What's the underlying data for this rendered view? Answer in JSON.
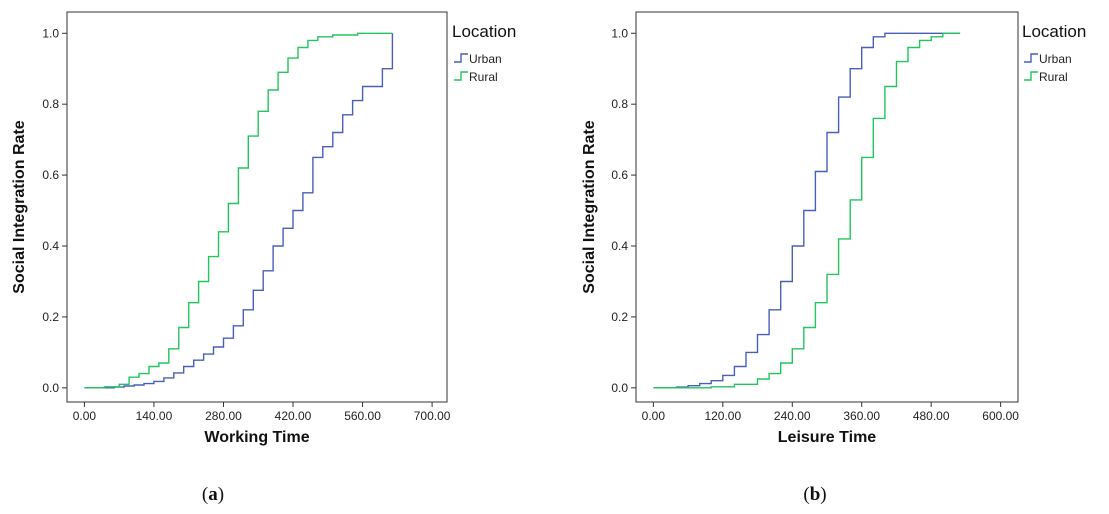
{
  "chart_data": [
    {
      "type": "line",
      "xlabel": "Working Time",
      "ylabel": "Social Integration Rate",
      "xlim": [
        -35,
        730
      ],
      "ylim": [
        -0.04,
        1.06
      ],
      "x_ticks": [
        "0.00",
        "140.00",
        "280.00",
        "420.00",
        "560.00",
        "700.00"
      ],
      "y_ticks": [
        "0.0",
        "0.2",
        "0.4",
        "0.6",
        "0.8",
        "1.0"
      ],
      "legend_title": "Location",
      "legend_position": "right",
      "caption": "(a)",
      "series": [
        {
          "name": "Urban",
          "color": "#4a5fb8",
          "points": [
            [
              0,
              0
            ],
            [
              60,
              0.002
            ],
            [
              80,
              0.005
            ],
            [
              100,
              0.008
            ],
            [
              120,
              0.012
            ],
            [
              140,
              0.018
            ],
            [
              160,
              0.028
            ],
            [
              180,
              0.042
            ],
            [
              200,
              0.06
            ],
            [
              220,
              0.078
            ],
            [
              240,
              0.095
            ],
            [
              260,
              0.115
            ],
            [
              280,
              0.14
            ],
            [
              300,
              0.175
            ],
            [
              320,
              0.22
            ],
            [
              340,
              0.275
            ],
            [
              360,
              0.33
            ],
            [
              380,
              0.4
            ],
            [
              400,
              0.45
            ],
            [
              420,
              0.5
            ],
            [
              440,
              0.55
            ],
            [
              460,
              0.65
            ],
            [
              480,
              0.68
            ],
            [
              500,
              0.72
            ],
            [
              520,
              0.77
            ],
            [
              540,
              0.81
            ],
            [
              560,
              0.85
            ],
            [
              600,
              0.9
            ],
            [
              620,
              0.9
            ],
            [
              620,
              1.0
            ]
          ]
        },
        {
          "name": "Rural",
          "color": "#22c55e",
          "points": [
            [
              0,
              0
            ],
            [
              40,
              0.003
            ],
            [
              70,
              0.01
            ],
            [
              90,
              0.03
            ],
            [
              110,
              0.04
            ],
            [
              130,
              0.06
            ],
            [
              150,
              0.07
            ],
            [
              170,
              0.11
            ],
            [
              190,
              0.17
            ],
            [
              210,
              0.24
            ],
            [
              230,
              0.3
            ],
            [
              250,
              0.37
            ],
            [
              270,
              0.44
            ],
            [
              290,
              0.52
            ],
            [
              310,
              0.62
            ],
            [
              330,
              0.71
            ],
            [
              350,
              0.78
            ],
            [
              370,
              0.84
            ],
            [
              390,
              0.89
            ],
            [
              410,
              0.93
            ],
            [
              430,
              0.96
            ],
            [
              450,
              0.98
            ],
            [
              470,
              0.99
            ],
            [
              500,
              0.995
            ],
            [
              550,
              1.0
            ],
            [
              620,
              1.0
            ]
          ]
        }
      ]
    },
    {
      "type": "line",
      "xlabel": "Leisure Time",
      "ylabel": "Social Integration Rate",
      "xlim": [
        -30,
        630
      ],
      "ylim": [
        -0.04,
        1.06
      ],
      "x_ticks": [
        "0.00",
        "120.00",
        "240.00",
        "360.00",
        "480.00",
        "600.00"
      ],
      "y_ticks": [
        "0.0",
        "0.2",
        "0.4",
        "0.6",
        "0.8",
        "1.0"
      ],
      "legend_title": "Location",
      "legend_position": "right",
      "caption": "(b)",
      "series": [
        {
          "name": "Urban",
          "color": "#4a5fb8",
          "points": [
            [
              0,
              0
            ],
            [
              40,
              0.002
            ],
            [
              60,
              0.006
            ],
            [
              80,
              0.012
            ],
            [
              100,
              0.02
            ],
            [
              120,
              0.035
            ],
            [
              140,
              0.06
            ],
            [
              160,
              0.1
            ],
            [
              180,
              0.15
            ],
            [
              200,
              0.22
            ],
            [
              220,
              0.3
            ],
            [
              240,
              0.4
            ],
            [
              260,
              0.5
            ],
            [
              280,
              0.61
            ],
            [
              300,
              0.72
            ],
            [
              320,
              0.82
            ],
            [
              340,
              0.9
            ],
            [
              360,
              0.96
            ],
            [
              380,
              0.99
            ],
            [
              400,
              1.0
            ],
            [
              530,
              1.0
            ]
          ]
        },
        {
          "name": "Rural",
          "color": "#22c55e",
          "points": [
            [
              0,
              0
            ],
            [
              100,
              0.003
            ],
            [
              140,
              0.01
            ],
            [
              180,
              0.025
            ],
            [
              200,
              0.04
            ],
            [
              220,
              0.07
            ],
            [
              240,
              0.11
            ],
            [
              260,
              0.17
            ],
            [
              280,
              0.24
            ],
            [
              300,
              0.32
            ],
            [
              320,
              0.42
            ],
            [
              340,
              0.53
            ],
            [
              360,
              0.65
            ],
            [
              380,
              0.76
            ],
            [
              400,
              0.85
            ],
            [
              420,
              0.92
            ],
            [
              440,
              0.96
            ],
            [
              460,
              0.98
            ],
            [
              480,
              0.99
            ],
            [
              500,
              1.0
            ],
            [
              530,
              1.0
            ]
          ]
        }
      ]
    }
  ]
}
